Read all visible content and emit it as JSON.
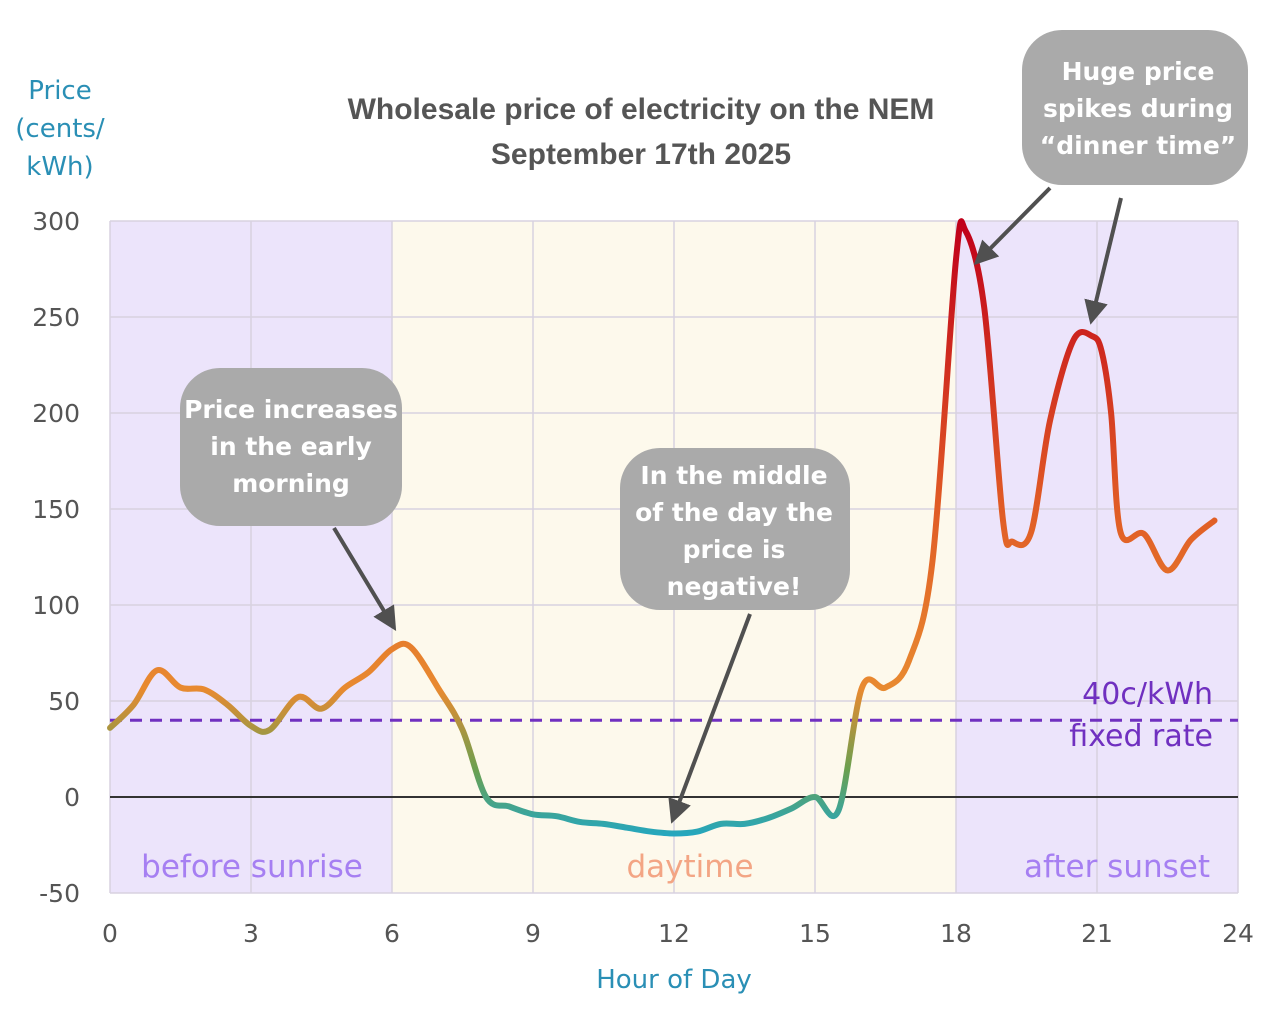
{
  "chart_data": {
    "type": "line",
    "title_lines": [
      "Wholesale price of electricity on the NEM",
      "September 17th 2025"
    ],
    "ylabel_lines": [
      "Price",
      "(cents/",
      "kWh)"
    ],
    "xlabel": "Hour of Day",
    "xlim": [
      0,
      24
    ],
    "ylim": [
      -50,
      300
    ],
    "xticks": [
      0,
      3,
      6,
      9,
      12,
      15,
      18,
      21,
      24
    ],
    "yticks": [
      -50,
      0,
      50,
      100,
      150,
      200,
      250,
      300
    ],
    "grid": true,
    "x": [
      0,
      0.5,
      1,
      1.5,
      2,
      2.5,
      3,
      3.4,
      4,
      4.5,
      5,
      5.5,
      6,
      6.4,
      7,
      7.5,
      8,
      8.5,
      9,
      9.5,
      10,
      10.5,
      11,
      11.5,
      12,
      12.5,
      13,
      13.5,
      14,
      14.5,
      15,
      15.5,
      16,
      16.5,
      17,
      17.5,
      18,
      18.2,
      18.6,
      19,
      19.2,
      19.6,
      20,
      20.5,
      20.9,
      21.1,
      21.3,
      21.5,
      22,
      22.5,
      23,
      23.5
    ],
    "y": [
      36,
      48,
      66,
      57,
      56,
      48,
      37,
      35,
      52,
      46,
      57,
      65,
      77,
      78,
      56,
      35,
      0,
      -5,
      -9,
      -10,
      -13,
      -14,
      -16,
      -18,
      -19,
      -18,
      -14,
      -14,
      -11,
      -6,
      0,
      -7,
      57,
      57,
      71,
      123,
      280,
      295,
      255,
      144,
      133,
      138,
      196,
      238,
      240,
      232,
      200,
      138,
      137,
      118,
      134,
      144
    ],
    "line_colors": {
      "high": "#c0001a",
      "mid": "#e05a25",
      "low": "#e88a30",
      "zero": "#6aa050",
      "neg": "#1aa8d0"
    },
    "regions": [
      {
        "label": "before sunrise",
        "from": 0,
        "to": 6,
        "fill": "#ece4fb",
        "label_color": "#a67ff2"
      },
      {
        "label": "daytime",
        "from": 6,
        "to": 18,
        "fill": "#fdf9ec",
        "label_color": "#f3a584"
      },
      {
        "label": "after sunset",
        "from": 18,
        "to": 24,
        "fill": "#ece4fb",
        "label_color": "#a67ff2"
      }
    ],
    "reference_line": {
      "value": 40,
      "label_lines": [
        "40c/kWh",
        "fixed rate"
      ],
      "color": "#7030c0"
    },
    "annotations": [
      {
        "lines": [
          "Price increases",
          "in the early",
          "morning"
        ],
        "arrow_to": [
          6,
          90
        ]
      },
      {
        "lines": [
          "In the middle",
          "of the day the",
          "price is",
          "negative!"
        ],
        "arrow_to": [
          12,
          -10
        ]
      },
      {
        "lines": [
          "Huge price",
          "spikes during",
          "“dinner time”"
        ],
        "arrow_to": [
          18.5,
          280
        ]
      },
      {
        "lines": [
          "",
          "",
          ""
        ],
        "arrow_to": [
          20.9,
          250
        ]
      }
    ],
    "axis_label_color": "#2a8fb5"
  }
}
